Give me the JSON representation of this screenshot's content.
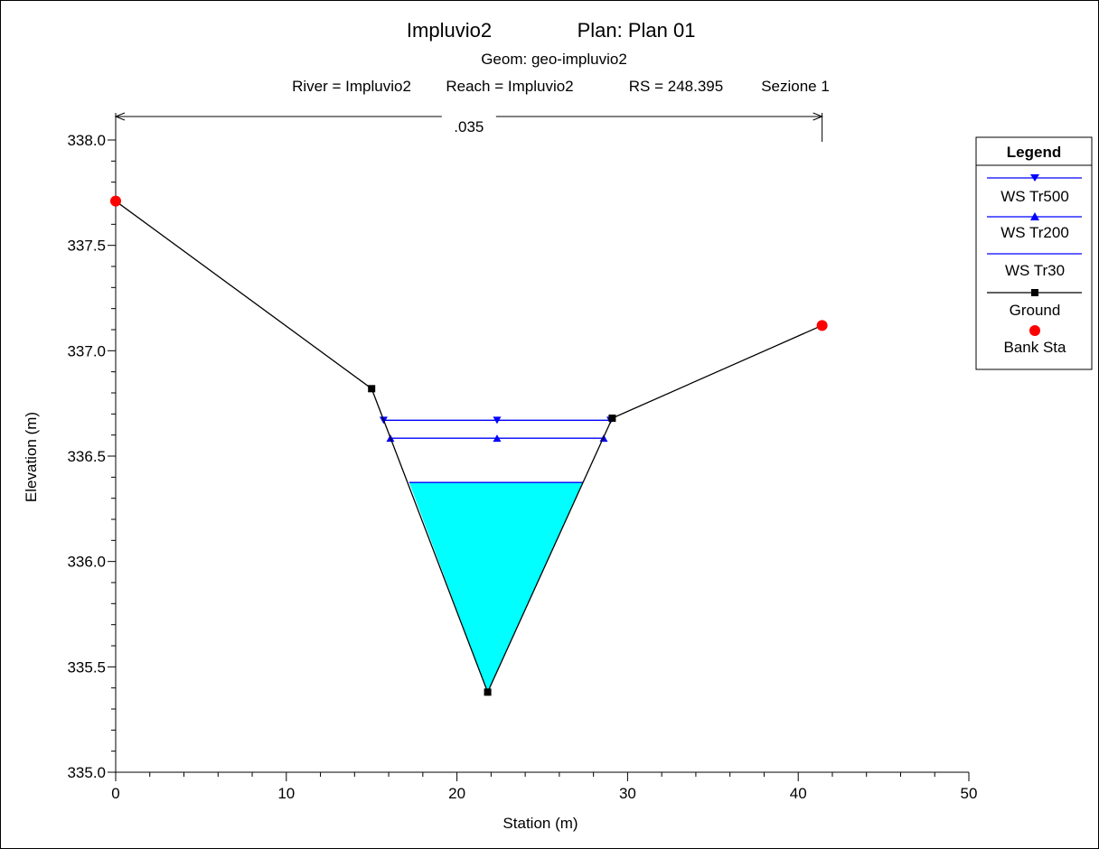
{
  "chart_data": {
    "type": "line",
    "title": "Impluvio2",
    "plan": "Plan: Plan 01",
    "geom": "Geom: geo-impluvio2",
    "subtitle": {
      "river": "River = Impluvio2",
      "reach": "Reach = Impluvio2",
      "rs": "RS = 248.395",
      "section": "Sezione 1"
    },
    "xlabel": "Station (m)",
    "ylabel": "Elevation (m)",
    "xlim": [
      0,
      50
    ],
    "ylim": [
      335.0,
      338.0
    ],
    "x_ticks": [
      "0",
      "10",
      "20",
      "30",
      "40",
      "50"
    ],
    "y_ticks": [
      "335.0",
      "335.5",
      "336.0",
      "336.5",
      "337.0",
      "337.5",
      "338.0"
    ],
    "manning": {
      "value": ".035",
      "x_start": 0,
      "x_end": 41.4
    },
    "ground": {
      "name": "Ground",
      "x": [
        0,
        15.0,
        21.8,
        29.1,
        41.4
      ],
      "y": [
        337.71,
        336.82,
        335.38,
        336.68,
        337.12
      ]
    },
    "bank_stations": {
      "name": "Bank Sta",
      "x": [
        0,
        41.4
      ],
      "y": [
        337.71,
        337.12
      ]
    },
    "water_surfaces": [
      {
        "name": "WS Tr500",
        "elevation": 336.67,
        "x_left": 15.7,
        "x_right": 29.0,
        "marker": "down-triangle"
      },
      {
        "name": "WS Tr200",
        "elevation": 336.585,
        "x_left": 16.1,
        "x_right": 28.6,
        "marker": "up-triangle"
      },
      {
        "name": "WS Tr30",
        "elevation": 336.375,
        "x_left": 17.2,
        "x_right": 27.4,
        "marker": "none"
      }
    ],
    "legend": {
      "title": "Legend",
      "placement": "right",
      "items": [
        "WS Tr500",
        "WS Tr200",
        "WS Tr30",
        "Ground",
        "Bank Sta"
      ]
    },
    "colors": {
      "water_fill": "#00ffff",
      "ws_line": "#0000ff",
      "ground": "#000000",
      "bank": "#ff0000"
    }
  }
}
